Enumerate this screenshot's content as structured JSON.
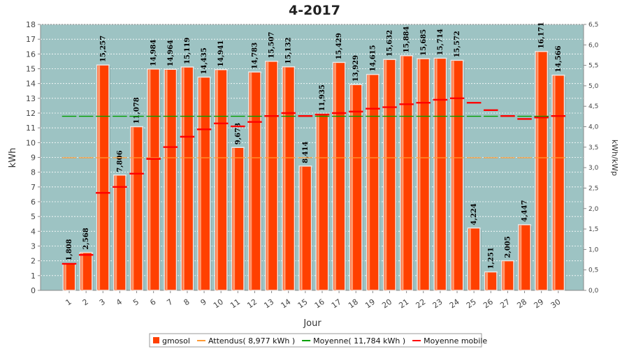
{
  "chart_data": {
    "type": "bar",
    "title": "4-2017",
    "xlabel": "Jour",
    "ylabel": "kWh",
    "y2label": "kWh/kWp",
    "ylim": [
      0,
      18
    ],
    "y2lim": [
      0,
      6.5
    ],
    "categories": [
      "1",
      "2",
      "3",
      "4",
      "5",
      "6",
      "7",
      "8",
      "9",
      "10",
      "11",
      "12",
      "13",
      "14",
      "15",
      "16",
      "17",
      "18",
      "19",
      "20",
      "21",
      "22",
      "23",
      "24",
      "25",
      "26",
      "27",
      "28",
      "29",
      "30"
    ],
    "series": [
      {
        "name": "gmosol",
        "type": "bar",
        "color": "#ff4000",
        "values": [
          1.808,
          2.568,
          15.257,
          7.806,
          11.078,
          14.984,
          14.964,
          15.119,
          14.435,
          14.941,
          9.673,
          14.783,
          15.507,
          15.132,
          8.414,
          11.935,
          15.429,
          13.929,
          14.615,
          15.632,
          15.884,
          15.685,
          15.714,
          15.572,
          4.224,
          1.251,
          2.005,
          4.447,
          16.171,
          14.566
        ],
        "labels": [
          "1,808",
          "2,568",
          "15,257",
          "7,806",
          "11,078",
          "14,984",
          "14,964",
          "15,119",
          "14,435",
          "14,941",
          "9,673",
          "14,783",
          "15,507",
          "15,132",
          "8,414",
          "11,935",
          "15,429",
          "13,929",
          "14,615",
          "15,632",
          "15,884",
          "15,685",
          "15,714",
          "15,572",
          "4,224",
          "1,251",
          "2,005",
          "4,447",
          "16,171",
          "14,566"
        ]
      },
      {
        "name": "Attendus( 8,977 kWh )",
        "type": "step",
        "color": "#ff9933",
        "values": [
          8.977,
          8.977,
          8.977,
          8.977,
          8.977,
          8.977,
          8.977,
          8.977,
          8.977,
          8.977,
          8.977,
          8.977,
          8.977,
          8.977,
          8.977,
          8.977,
          8.977,
          8.977,
          8.977,
          8.977,
          8.977,
          8.977,
          8.977,
          8.977,
          8.977,
          8.977,
          8.977,
          8.977,
          8.977,
          8.977
        ]
      },
      {
        "name": "Moyenne( 11,784 kWh )",
        "type": "step",
        "color": "#00a000",
        "values": [
          11.784,
          11.784,
          11.784,
          11.784,
          11.784,
          11.784,
          11.784,
          11.784,
          11.784,
          11.784,
          11.784,
          11.784,
          11.784,
          11.784,
          11.784,
          11.784,
          11.784,
          11.784,
          11.784,
          11.784,
          11.784,
          11.784,
          11.784,
          11.784,
          11.784,
          11.784,
          11.784,
          11.784,
          11.784,
          11.784
        ]
      },
      {
        "name": "Moyenne mobile",
        "type": "step",
        "color": "#ff0000",
        "values": [
          1.8,
          2.4,
          6.6,
          7.0,
          7.9,
          8.9,
          9.7,
          10.4,
          10.9,
          11.3,
          11.1,
          11.4,
          11.8,
          12.0,
          11.8,
          11.9,
          12.0,
          12.1,
          12.3,
          12.4,
          12.6,
          12.7,
          12.9,
          13.0,
          12.7,
          12.2,
          11.8,
          11.6,
          11.7,
          11.8
        ]
      }
    ],
    "yticks": [
      "0",
      "1",
      "2",
      "3",
      "4",
      "5",
      "6",
      "7",
      "8",
      "9",
      "10",
      "11",
      "12",
      "13",
      "14",
      "15",
      "16",
      "17",
      "18"
    ],
    "y2ticks": [
      "0,0",
      "0,5",
      "1,0",
      "1,5",
      "2,0",
      "2,5",
      "3,0",
      "3,5",
      "4,0",
      "4,5",
      "5,0",
      "5,5",
      "6,0",
      "6,5"
    ],
    "grid": true,
    "legend_position": "bottom",
    "plot_background": "#9dc3c3"
  }
}
